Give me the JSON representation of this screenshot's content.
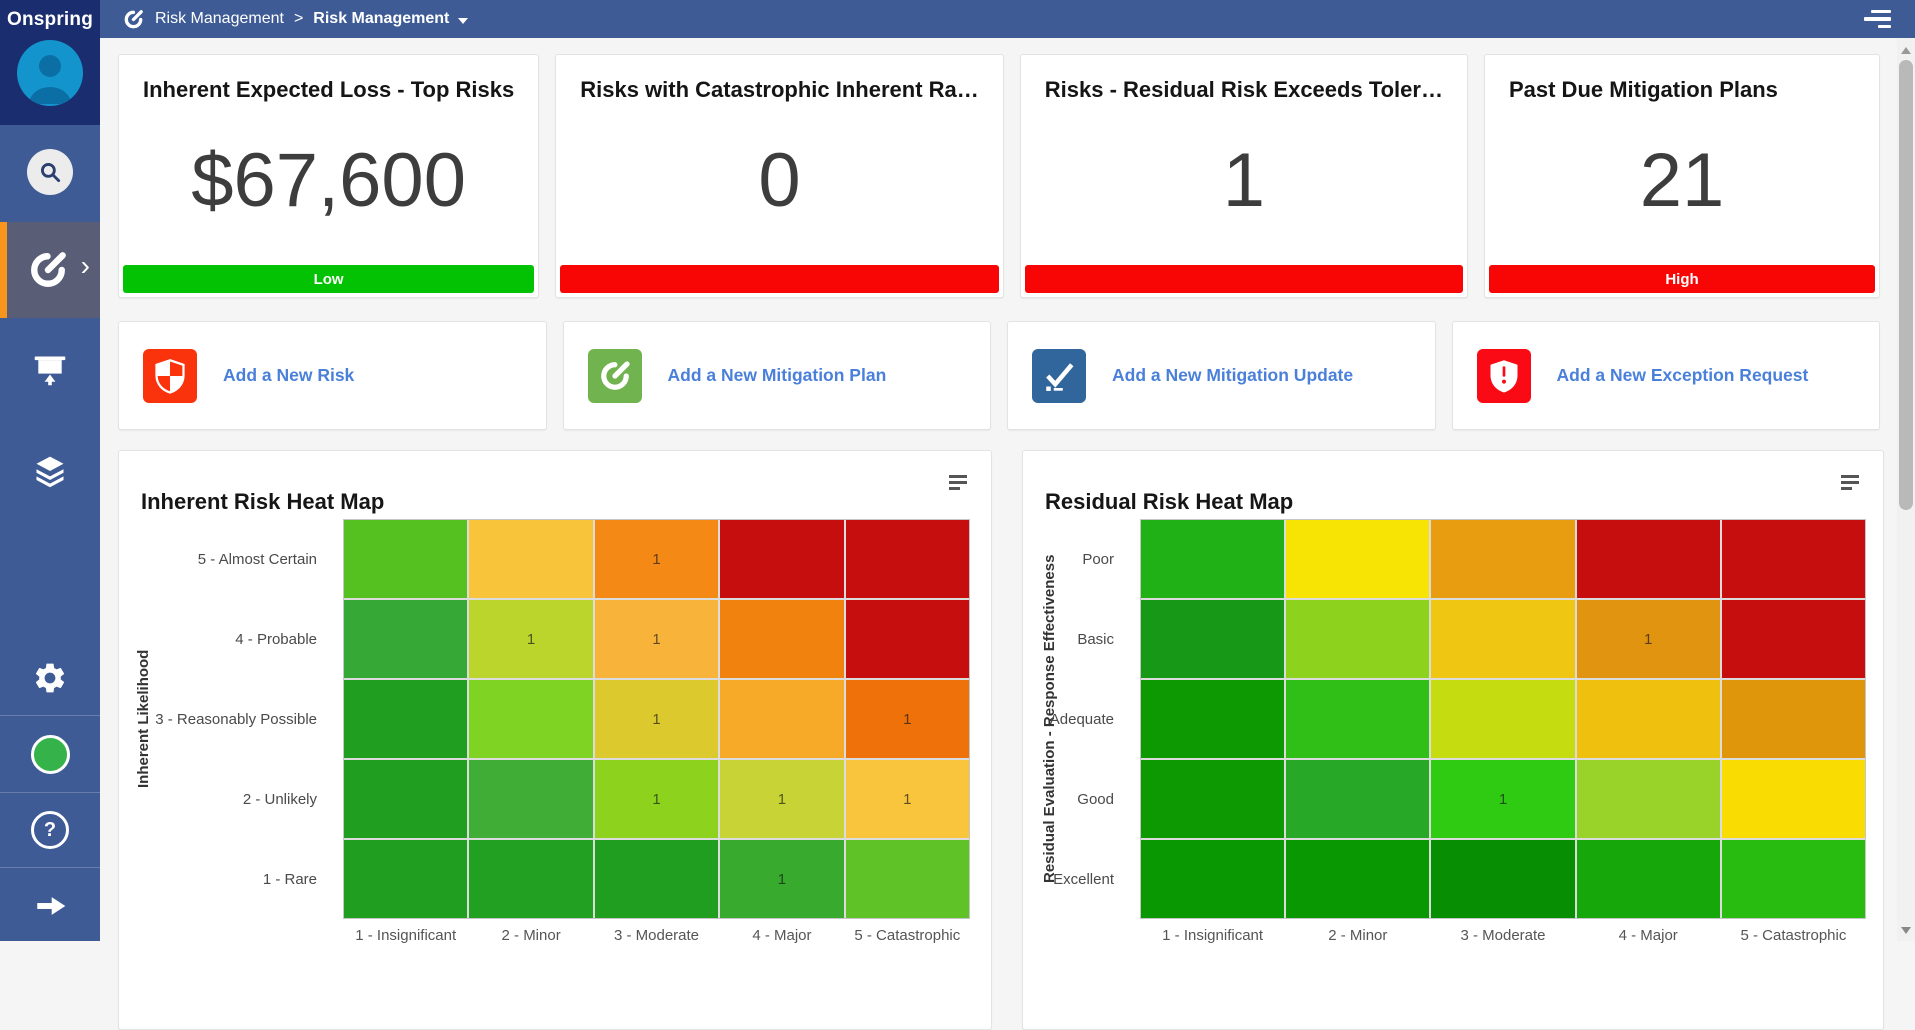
{
  "app": {
    "logo": "Onspring"
  },
  "header": {
    "breadcrumb_root": "Risk Management",
    "separator": ">",
    "breadcrumb_current": "Risk Management",
    "menu_icon": "hamburger-menu-icon"
  },
  "sidebar": {
    "help_glyph": "?",
    "active_item_chevron": "›",
    "icons": [
      "search-icon",
      "onspring-gauge-icon",
      "presentation-board-icon",
      "layers-icon",
      "gear-icon",
      "status-green-dot",
      "help-icon",
      "arrow-right-icon"
    ]
  },
  "kpi_cards": [
    {
      "title": "Inherent Expected Loss - Top Risks",
      "value": "$67,600",
      "status_label": "Low",
      "status_color": "#03c203"
    },
    {
      "title": "Risks with Catastrophic Inherent Ra…",
      "value": "0",
      "status_label": "",
      "status_color": "#f80606"
    },
    {
      "title": "Risks - Residual Risk Exceeds Toler…",
      "value": "1",
      "status_label": "",
      "status_color": "#f80606"
    },
    {
      "title": "Past Due Mitigation Plans",
      "value": "21",
      "status_label": "High",
      "status_color": "#f80606"
    }
  ],
  "action_cards": [
    {
      "label": "Add a New Risk",
      "icon": "shield-quartered-icon",
      "icon_color": "#fa330d"
    },
    {
      "label": "Add a New Mitigation Plan",
      "icon": "gauge-icon",
      "icon_color": "#71b34e"
    },
    {
      "label": "Add a New Mitigation Update",
      "icon": "checklist-icon",
      "icon_color": "#30669c"
    },
    {
      "label": "Add a New Exception Request",
      "icon": "shield-exclamation-icon",
      "icon_color": "#fa0a14"
    }
  ],
  "chart_data": [
    {
      "type": "heatmap",
      "title": "Inherent Risk Heat Map",
      "ylabel": "Inherent Likelihood",
      "col_labels": [
        "1 - Insignificant",
        "2 - Minor",
        "3 - Moderate",
        "4 - Major",
        "5 - Catastrophic"
      ],
      "rows": [
        {
          "label": "5 - Almost Certain",
          "cells": [
            {
              "color": "#54c120",
              "value": ""
            },
            {
              "color": "#f7c43a",
              "value": ""
            },
            {
              "color": "#f48a15",
              "value": "1"
            },
            {
              "color": "#c60e0e",
              "value": ""
            },
            {
              "color": "#c60e0e",
              "value": ""
            }
          ]
        },
        {
          "label": "4 - Probable",
          "cells": [
            {
              "color": "#35a835",
              "value": ""
            },
            {
              "color": "#bcd52c",
              "value": "1"
            },
            {
              "color": "#f8b43a",
              "value": "1"
            },
            {
              "color": "#f2820e",
              "value": ""
            },
            {
              "color": "#c60e0e",
              "value": ""
            }
          ]
        },
        {
          "label": "3 - Reasonably Possible",
          "cells": [
            {
              "color": "#1f9e1f",
              "value": ""
            },
            {
              "color": "#7fd322",
              "value": ""
            },
            {
              "color": "#dcc92e",
              "value": "1"
            },
            {
              "color": "#f7a928",
              "value": ""
            },
            {
              "color": "#ee7209",
              "value": "1"
            }
          ]
        },
        {
          "label": "2 - Unlikely",
          "cells": [
            {
              "color": "#1f9e1f",
              "value": ""
            },
            {
              "color": "#40ad36",
              "value": ""
            },
            {
              "color": "#8dd31d",
              "value": "1"
            },
            {
              "color": "#c8d335",
              "value": "1"
            },
            {
              "color": "#f8c53c",
              "value": "1"
            }
          ]
        },
        {
          "label": "1 - Rare",
          "cells": [
            {
              "color": "#1f9e1f",
              "value": ""
            },
            {
              "color": "#22a022",
              "value": ""
            },
            {
              "color": "#1f9e1f",
              "value": ""
            },
            {
              "color": "#38aa2d",
              "value": "1"
            },
            {
              "color": "#5fc226",
              "value": ""
            }
          ]
        }
      ]
    },
    {
      "type": "heatmap",
      "title": "Residual Risk Heat Map",
      "ylabel": "Residual Evaluation - Response Effectiveness",
      "col_labels": [
        "1 - Insignificant",
        "2 - Minor",
        "3 - Moderate",
        "4 - Major",
        "5 - Catastrophic"
      ],
      "rows": [
        {
          "label": "Poor",
          "cells": [
            {
              "color": "#1fb115",
              "value": ""
            },
            {
              "color": "#f7e405",
              "value": ""
            },
            {
              "color": "#e89d10",
              "value": ""
            },
            {
              "color": "#c60e0e",
              "value": ""
            },
            {
              "color": "#c60e0e",
              "value": ""
            }
          ]
        },
        {
          "label": "Basic",
          "cells": [
            {
              "color": "#179917",
              "value": ""
            },
            {
              "color": "#8dd31d",
              "value": ""
            },
            {
              "color": "#efc611",
              "value": ""
            },
            {
              "color": "#e0940f",
              "value": "1"
            },
            {
              "color": "#c60e0e",
              "value": ""
            }
          ]
        },
        {
          "label": "Adequate",
          "cells": [
            {
              "color": "#0c9902",
              "value": ""
            },
            {
              "color": "#30bf17",
              "value": ""
            },
            {
              "color": "#c5dc10",
              "value": ""
            },
            {
              "color": "#efc00e",
              "value": ""
            },
            {
              "color": "#df960b",
              "value": ""
            }
          ]
        },
        {
          "label": "Good",
          "cells": [
            {
              "color": "#0c9902",
              "value": ""
            },
            {
              "color": "#27a827",
              "value": ""
            },
            {
              "color": "#2fcb13",
              "value": "1"
            },
            {
              "color": "#99d329",
              "value": ""
            },
            {
              "color": "#f9dd02",
              "value": ""
            }
          ]
        },
        {
          "label": "Excellent",
          "cells": [
            {
              "color": "#0a9802",
              "value": ""
            },
            {
              "color": "#0a9802",
              "value": ""
            },
            {
              "color": "#078e02",
              "value": ""
            },
            {
              "color": "#16a80b",
              "value": ""
            },
            {
              "color": "#28bb10",
              "value": ""
            }
          ]
        }
      ]
    }
  ]
}
